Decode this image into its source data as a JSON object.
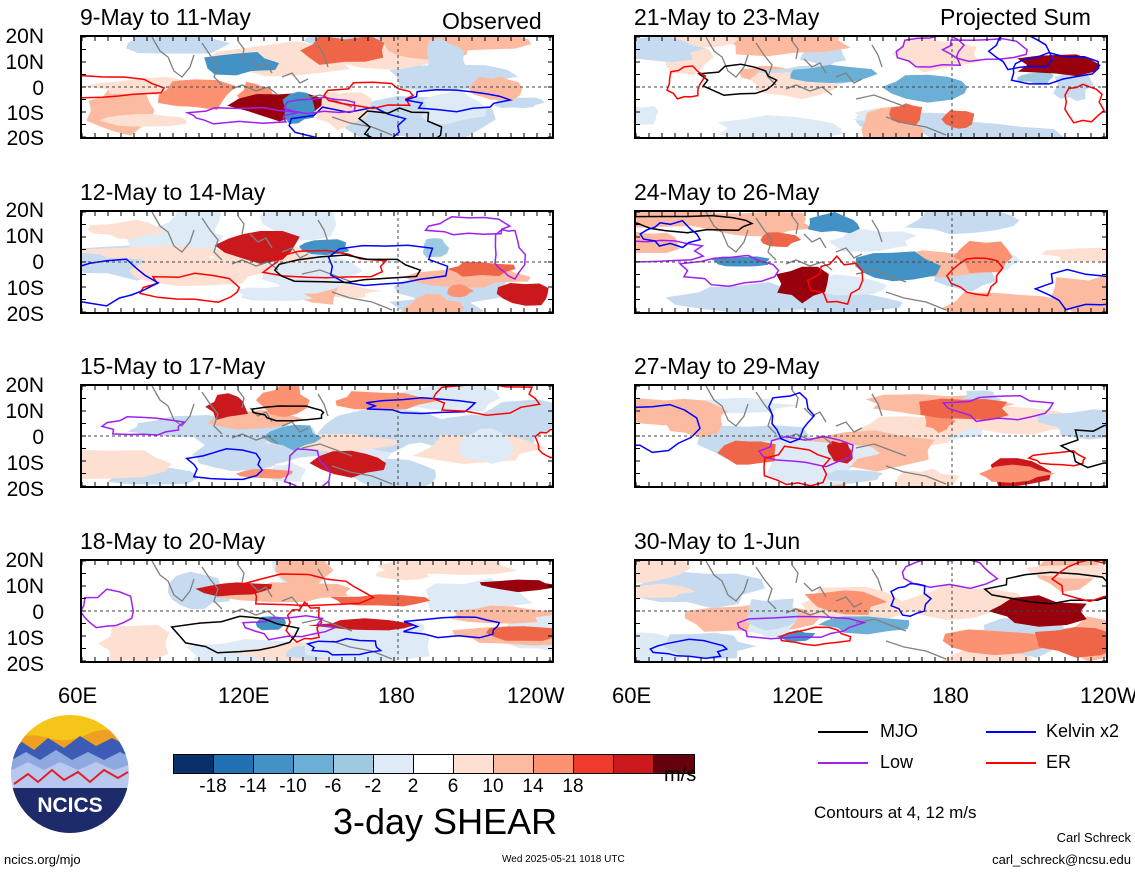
{
  "labels": {
    "observed": "Observed",
    "projected": "Projected Sum"
  },
  "panels": [
    {
      "title": "9-May to 11-May"
    },
    {
      "title": "12-May to 14-May"
    },
    {
      "title": "15-May to 17-May"
    },
    {
      "title": "18-May to 20-May"
    },
    {
      "title": "21-May to 23-May"
    },
    {
      "title": "24-May to 26-May"
    },
    {
      "title": "27-May to 29-May"
    },
    {
      "title": "30-May to 1-Jun"
    }
  ],
  "y_ticks": [
    "20N",
    "10N",
    "0",
    "10S",
    "20S"
  ],
  "x_ticks_left": [
    "60E",
    "120E",
    "180",
    "120W"
  ],
  "x_ticks_right": [
    "60E",
    "120E",
    "180",
    "120W"
  ],
  "colorbar": {
    "ticks": [
      "-18",
      "-14",
      "-10",
      "-6",
      "-2",
      "2",
      "6",
      "10",
      "14",
      "18"
    ],
    "colors": [
      "#08306b",
      "#2171b5",
      "#4292c6",
      "#6baed6",
      "#9ecae1",
      "#deebf7",
      "#ffffff",
      "#fee0d2",
      "#fcbba1",
      "#fc9272",
      "#ef3b2c",
      "#cb181d",
      "#67000d"
    ],
    "unit": "m/s",
    "title": "3-day SHEAR"
  },
  "legend": {
    "items": [
      {
        "label": "MJO",
        "color": "#000000"
      },
      {
        "label": "Kelvin x2",
        "color": "#0000ff"
      },
      {
        "label": "Low",
        "color": "#a020f0"
      },
      {
        "label": "ER",
        "color": "#ff0000"
      }
    ],
    "contours_note": "Contours at 4, 12 m/s"
  },
  "logo": {
    "text": "NCICS"
  },
  "footer": {
    "site": "ncics.org/mjo",
    "timestamp": "Wed 2025-05-21 1018 UTC",
    "author": "Carl Schreck",
    "email": "carl_schreck@ncsu.edu"
  }
}
